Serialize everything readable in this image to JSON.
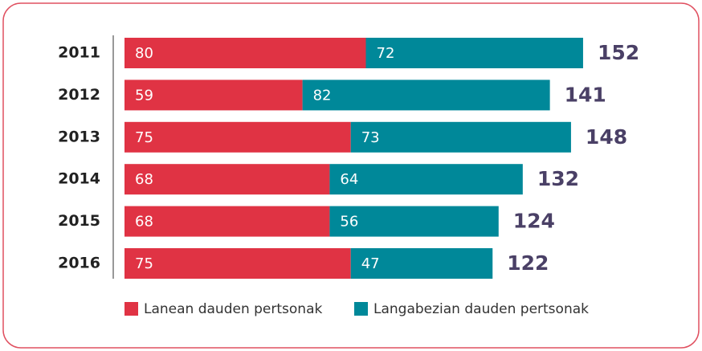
{
  "chart_data": {
    "type": "stacked-bar-horizontal",
    "categories": [
      "2011",
      "2012",
      "2013",
      "2014",
      "2015",
      "2016"
    ],
    "series": [
      {
        "name": "Lanean dauden pertsonak",
        "color": "#e03344",
        "values": [
          80,
          59,
          75,
          68,
          68,
          75
        ]
      },
      {
        "name": "Langabezian dauden pertsonak",
        "color": "#008899",
        "values": [
          72,
          82,
          73,
          64,
          56,
          47
        ]
      }
    ],
    "totals": [
      152,
      141,
      148,
      132,
      124,
      122
    ],
    "xlim": [
      0,
      160
    ]
  }
}
